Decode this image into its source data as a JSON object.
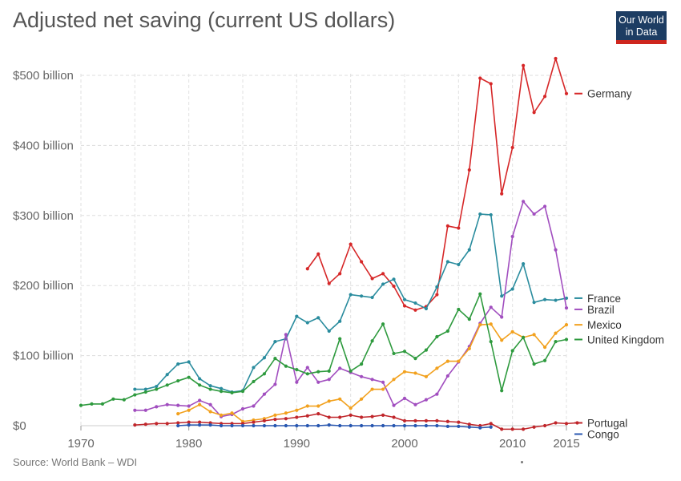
{
  "title": "Adjusted net saving (current US dollars)",
  "logo": {
    "line1": "Our World",
    "line2": "in Data"
  },
  "source": "Source: World Bank – WDI",
  "chart_data": {
    "type": "line",
    "title": "Adjusted net saving (current US dollars)",
    "xlim": [
      1970,
      2015
    ],
    "ylim": [
      0,
      500
    ],
    "x_ticks": [
      1970,
      1980,
      1990,
      2000,
      2010,
      2015
    ],
    "y_ticks": [
      {
        "value": 0,
        "label": "$0"
      },
      {
        "value": 100,
        "label": "$100 billion"
      },
      {
        "value": 200,
        "label": "$200 billion"
      },
      {
        "value": 300,
        "label": "$300 billion"
      },
      {
        "value": 400,
        "label": "$400 billion"
      },
      {
        "value": 500,
        "label": "$500 billion"
      }
    ],
    "grid": true,
    "legend_position": "right",
    "series": [
      {
        "name": "Germany",
        "color": "#d62728",
        "start": 1991,
        "values": [
          224,
          245,
          203,
          217,
          259,
          234,
          210,
          217,
          199,
          171,
          165,
          170,
          187,
          285,
          282,
          365,
          496,
          488,
          331,
          397,
          514,
          447,
          470,
          524,
          474
        ]
      },
      {
        "name": "France",
        "color": "#2a8c9e",
        "start": 1975,
        "values": [
          52,
          52,
          56,
          73,
          88,
          91,
          67,
          57,
          53,
          48,
          50,
          83,
          97,
          120,
          124,
          156,
          147,
          154,
          135,
          149,
          187,
          185,
          183,
          202,
          209,
          180,
          175,
          167,
          198,
          234,
          230,
          251,
          302,
          301,
          185,
          195,
          231,
          176,
          180,
          179,
          182
        ]
      },
      {
        "name": "Brazil",
        "color": "#a14ebf",
        "start": 1975,
        "values": [
          22,
          22,
          27,
          30,
          29,
          28,
          36,
          30,
          13,
          16,
          24,
          28,
          45,
          59,
          130,
          62,
          83,
          62,
          66,
          82,
          76,
          70,
          66,
          62,
          29,
          39,
          30,
          37,
          45,
          71,
          91,
          113,
          146,
          169,
          155,
          270,
          320,
          302,
          313,
          251,
          168
        ]
      },
      {
        "name": "Mexico",
        "color": "#f2a11e",
        "start": 1979,
        "values": [
          17,
          22,
          30,
          20,
          15,
          18,
          6,
          8,
          10,
          15,
          18,
          22,
          28,
          28,
          35,
          38,
          25,
          38,
          52,
          52,
          66,
          77,
          75,
          70,
          82,
          92,
          92,
          110,
          144,
          145,
          122,
          134,
          126,
          130,
          112,
          132,
          144
        ]
      },
      {
        "name": "United Kingdom",
        "color": "#2e9a3e",
        "start": 1970,
        "values": [
          29,
          31,
          31,
          38,
          37,
          44,
          48,
          52,
          58,
          64,
          69,
          58,
          52,
          49,
          47,
          49,
          63,
          74,
          96,
          85,
          80,
          74,
          77,
          78,
          124,
          78,
          88,
          121,
          145,
          103,
          106,
          96,
          108,
          127,
          135,
          166,
          152,
          188,
          120,
          50,
          107,
          126,
          88,
          93,
          120,
          123
        ]
      },
      {
        "name": "Portugal",
        "color": "#c0262b",
        "start": 1975,
        "values": [
          1,
          2,
          3,
          3,
          4,
          5,
          5,
          4,
          3,
          3,
          3,
          5,
          7,
          9,
          10,
          12,
          14,
          17,
          12,
          12,
          15,
          12,
          13,
          15,
          12,
          7,
          7,
          7,
          7,
          6,
          5,
          2,
          0,
          3,
          -5,
          -5,
          -5,
          -2,
          0,
          4,
          3,
          4
        ]
      },
      {
        "name": "Congo",
        "color": "#2857b0",
        "start": 1979,
        "values": [
          0,
          1,
          1,
          1,
          0,
          0,
          0,
          0,
          0,
          0,
          0,
          0,
          0,
          0,
          1,
          0,
          0,
          0,
          0,
          0,
          0,
          0,
          0,
          0,
          0,
          -1,
          -1,
          -2,
          -3,
          -2
        ]
      }
    ]
  }
}
